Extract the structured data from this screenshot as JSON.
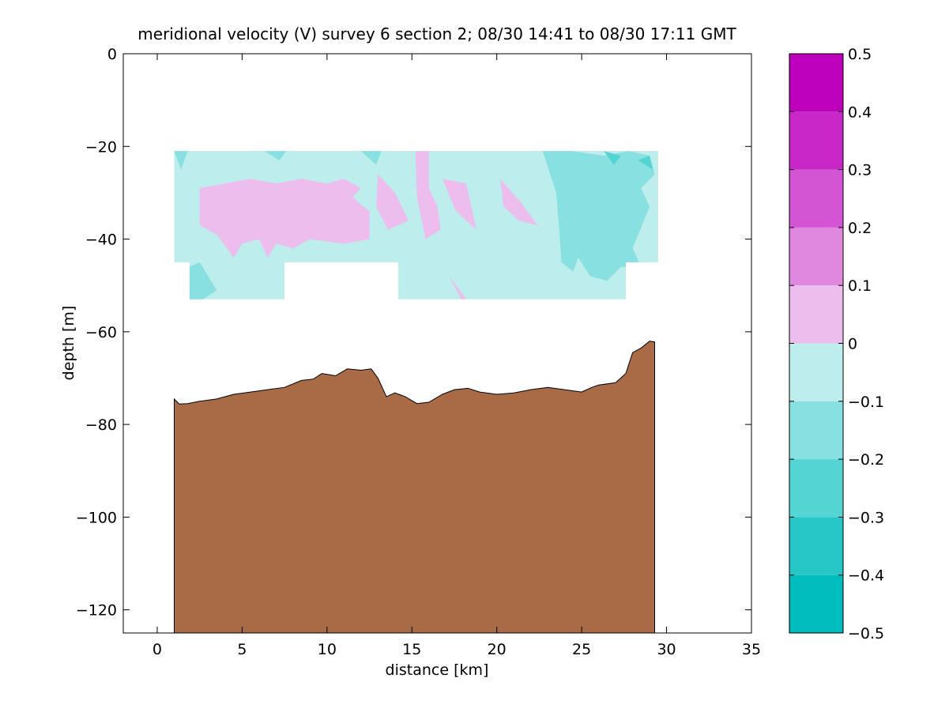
{
  "chart_data": {
    "type": "contour",
    "title": "meridional velocity (V) survey 6 section 2; 08/30 14:41 to 08/30 17:11 GMT",
    "xlabel": "distance [km]",
    "ylabel": "depth [m]",
    "xlim": [
      -2,
      35
    ],
    "ylim": [
      -125,
      0
    ],
    "xticks": [
      0,
      5,
      10,
      15,
      20,
      25,
      30,
      35
    ],
    "yticks": [
      0,
      -20,
      -40,
      -60,
      -80,
      -100,
      -120
    ],
    "grid": false,
    "colorbar": {
      "levels": [
        -0.5,
        -0.4,
        -0.3,
        -0.2,
        -0.1,
        0,
        0.1,
        0.2,
        0.3,
        0.4,
        0.5
      ],
      "tick_labels": [
        "−0.5",
        "−0.4",
        "−0.3",
        "−0.2",
        "−0.1",
        "0",
        "0.1",
        "0.2",
        "0.3",
        "0.4",
        "0.5"
      ],
      "colors": [
        "#00bcbc",
        "#27c6c6",
        "#55d4d4",
        "#88e0e0",
        "#bdeded",
        "#edbded",
        "#e088e0",
        "#d455d4",
        "#c627c6",
        "#bc00bc"
      ]
    },
    "data_region": {
      "x_range_km": [
        1.0,
        29.5
      ],
      "depth_range_m": [
        -21,
        -53
      ],
      "note_gap": "no data below -45 m for x 7.5-14.2 km"
    },
    "velocity_patches": [
      {
        "band": "-0.1 to 0",
        "color": "#bdeded",
        "role": "background"
      },
      {
        "band": "0 to 0.1",
        "color": "#edbded",
        "polygon": [
          [
            2.5,
            -29
          ],
          [
            4,
            -28
          ],
          [
            5.5,
            -27
          ],
          [
            7,
            -28
          ],
          [
            8.5,
            -27
          ],
          [
            10,
            -28
          ],
          [
            11,
            -27
          ],
          [
            12,
            -29
          ],
          [
            11.5,
            -31
          ],
          [
            12.5,
            -34
          ],
          [
            12.5,
            -40
          ],
          [
            11,
            -41
          ],
          [
            9,
            -40
          ],
          [
            8,
            -42
          ],
          [
            7,
            -41
          ],
          [
            6.5,
            -44
          ],
          [
            6,
            -40
          ],
          [
            5,
            -41
          ],
          [
            4.5,
            -44
          ],
          [
            3.5,
            -39
          ],
          [
            2.5,
            -37
          ]
        ]
      },
      {
        "band": "0 to 0.1",
        "color": "#edbded",
        "polygon": [
          [
            13,
            -26
          ],
          [
            14,
            -30
          ],
          [
            14.8,
            -36
          ],
          [
            13.6,
            -38
          ],
          [
            12.9,
            -33
          ]
        ]
      },
      {
        "band": "0 to 0.1",
        "color": "#edbded",
        "polygon": [
          [
            15.2,
            -21
          ],
          [
            16,
            -21
          ],
          [
            16,
            -29
          ],
          [
            16.5,
            -33
          ],
          [
            16.7,
            -38
          ],
          [
            15.8,
            -40
          ],
          [
            15.3,
            -31
          ]
        ]
      },
      {
        "band": "0 to 0.1",
        "color": "#edbded",
        "polygon": [
          [
            16.8,
            -27
          ],
          [
            18.2,
            -28
          ],
          [
            18.8,
            -38
          ],
          [
            17.6,
            -34
          ]
        ]
      },
      {
        "band": "0 to 0.1",
        "color": "#edbded",
        "polygon": [
          [
            20.2,
            -27
          ],
          [
            21.4,
            -32
          ],
          [
            22.4,
            -37
          ],
          [
            21.3,
            -36
          ],
          [
            20.4,
            -33
          ]
        ]
      },
      {
        "band": "0 to 0.1",
        "color": "#edbded",
        "polygon": [
          [
            17.2,
            -48
          ],
          [
            18.2,
            -53
          ],
          [
            17.9,
            -53
          ]
        ]
      },
      {
        "band": "-0.2 to -0.1",
        "color": "#88e0e0",
        "polygon": [
          [
            22.7,
            -21
          ],
          [
            24.4,
            -21
          ],
          [
            26.3,
            -22
          ],
          [
            27.8,
            -21
          ],
          [
            29,
            -22
          ],
          [
            29.3,
            -26
          ],
          [
            28.5,
            -29
          ],
          [
            29.0,
            -33
          ],
          [
            28,
            -42
          ],
          [
            28.5,
            -46
          ],
          [
            27.3,
            -46
          ],
          [
            26.5,
            -49
          ],
          [
            25.5,
            -48
          ],
          [
            24.8,
            -44
          ],
          [
            24.5,
            -47
          ],
          [
            23.8,
            -45
          ],
          [
            23.7,
            -39
          ],
          [
            23.5,
            -30
          ]
        ]
      },
      {
        "band": "-0.2 to -0.1",
        "color": "#88e0e0",
        "polygon": [
          [
            1.9,
            -46
          ],
          [
            2.5,
            -45
          ],
          [
            3.5,
            -51
          ],
          [
            2.7,
            -53
          ],
          [
            1.9,
            -53
          ]
        ]
      },
      {
        "band": "-0.2 to -0.1",
        "color": "#88e0e0",
        "polygon": [
          [
            12.0,
            -21
          ],
          [
            13.2,
            -21
          ],
          [
            12.9,
            -24
          ]
        ]
      },
      {
        "band": "-0.2 to -0.1",
        "color": "#88e0e0",
        "polygon": [
          [
            6.3,
            -21
          ],
          [
            7.6,
            -21
          ],
          [
            7.2,
            -23
          ]
        ]
      },
      {
        "band": "-0.2 to -0.1",
        "color": "#88e0e0",
        "polygon": [
          [
            1.0,
            -21
          ],
          [
            1.8,
            -21
          ],
          [
            1.4,
            -25
          ]
        ]
      },
      {
        "band": "-0.3 to -0.2",
        "color": "#55d4d4",
        "polygon": [
          [
            26.3,
            -21
          ],
          [
            27.3,
            -22
          ],
          [
            26.9,
            -24
          ]
        ]
      },
      {
        "band": "-0.3 to -0.2",
        "color": "#55d4d4",
        "polygon": [
          [
            28.3,
            -23
          ],
          [
            29.0,
            -22
          ],
          [
            29.2,
            -25
          ]
        ]
      }
    ],
    "seafloor": {
      "fill": "#a86b46",
      "x": [
        1.0,
        1.3,
        1.8,
        2.5,
        3.5,
        4.5,
        5.5,
        6.5,
        7.5,
        8.5,
        9.2,
        9.7,
        10.5,
        11.2,
        12.0,
        12.6,
        13.0,
        13.5,
        14.0,
        14.6,
        15.3,
        16.0,
        16.8,
        17.5,
        18.3,
        19.0,
        20.0,
        21.0,
        22.0,
        23.0,
        24.0,
        25.0,
        25.6,
        26.0,
        27.0,
        27.6,
        28.0,
        28.5,
        29.0,
        29.3
      ],
      "depth": [
        -74.5,
        -75.6,
        -75.5,
        -75.0,
        -74.5,
        -73.5,
        -73.0,
        -72.5,
        -72.0,
        -70.5,
        -70.2,
        -69.0,
        -69.5,
        -68.0,
        -68.3,
        -68.0,
        -70.0,
        -74.0,
        -73.2,
        -74.0,
        -75.5,
        -75.2,
        -73.5,
        -72.5,
        -72.2,
        -73.0,
        -73.5,
        -73.2,
        -72.5,
        -72.0,
        -72.5,
        -73.0,
        -72.0,
        -71.5,
        -71.0,
        -69.0,
        -64.5,
        -63.5,
        -62.0,
        -62.2
      ]
    }
  }
}
